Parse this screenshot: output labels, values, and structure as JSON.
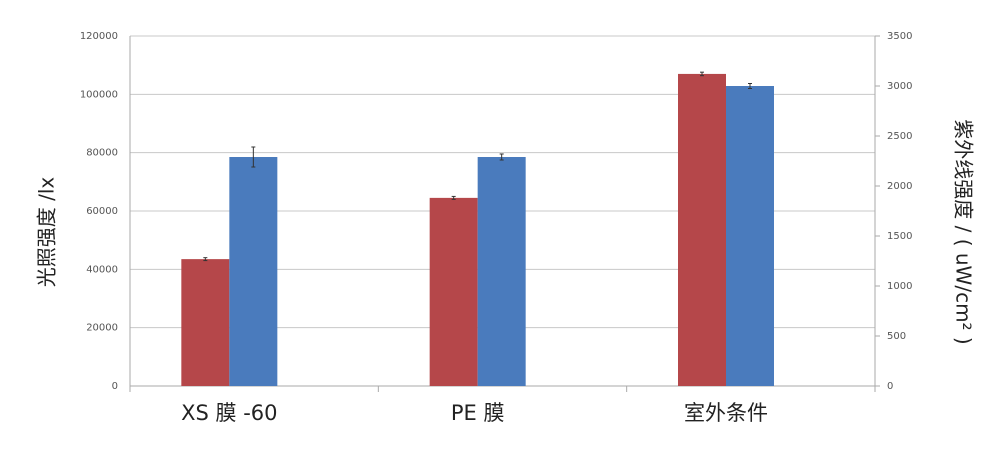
{
  "chart_data": {
    "type": "bar",
    "categories": [
      "XS 膜 -60",
      "PE 膜",
      "室外条件"
    ],
    "y_label": "光照强度 /lx",
    "y2_label": "紫外线强度 / ( uW/cm² )",
    "series": [
      {
        "color": "#b5474a",
        "values": [
          43500,
          64500,
          107000
        ],
        "errors": [
          500,
          500,
          600
        ]
      },
      {
        "color": "#4a7bbd",
        "values": [
          2290,
          2290,
          3000
        ],
        "errors": [
          100,
          30,
          25
        ],
        "axis": "y2"
      }
    ],
    "ylim": [
      0,
      120000
    ],
    "yticks": [
      0,
      20000,
      40000,
      60000,
      80000,
      100000,
      120000
    ],
    "y2lim": [
      0,
      3500
    ],
    "y2ticks": [
      0,
      500,
      1000,
      1500,
      2000,
      2500,
      3000,
      3500
    ],
    "grid": true
  }
}
